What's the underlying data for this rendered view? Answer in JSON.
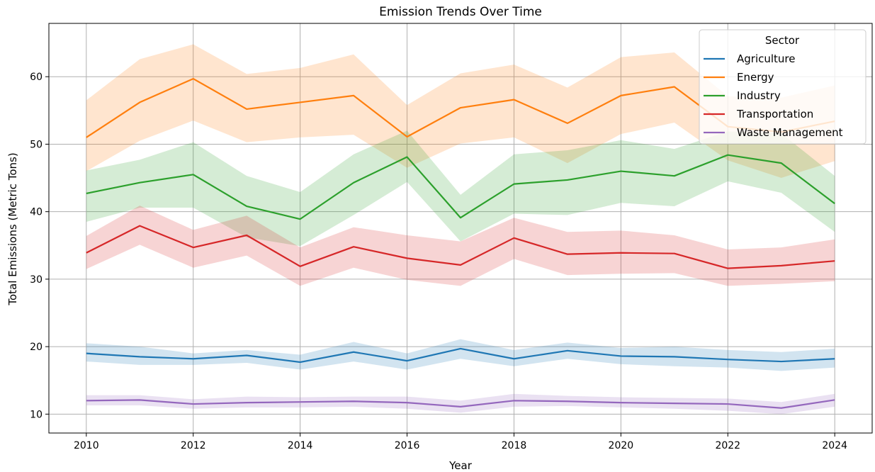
{
  "chart_data": {
    "type": "line",
    "title": "Emission Trends Over Time",
    "xlabel": "Year",
    "ylabel": "Total Emissions (Metric Tons)",
    "x": [
      2010,
      2011,
      2012,
      2013,
      2014,
      2015,
      2016,
      2017,
      2018,
      2019,
      2020,
      2021,
      2022,
      2023,
      2024
    ],
    "xlim": [
      2009.3,
      2024.7
    ],
    "ylim": [
      7.2,
      67.9
    ],
    "xticks": [
      "2010",
      "2012",
      "2014",
      "2016",
      "2018",
      "2020",
      "2022",
      "2024"
    ],
    "yticks": [
      "10",
      "20",
      "30",
      "40",
      "50",
      "60"
    ],
    "grid": true,
    "legend": {
      "title": "Sector",
      "placement": "top-right"
    },
    "series": [
      {
        "name": "Agriculture",
        "color": "#1f77b4",
        "values": [
          19.0,
          18.5,
          18.2,
          18.7,
          17.7,
          19.2,
          17.9,
          19.7,
          18.2,
          19.4,
          18.6,
          18.5,
          18.1,
          17.8,
          18.2
        ],
        "lower": [
          17.8,
          17.3,
          17.3,
          17.6,
          16.6,
          17.8,
          16.6,
          18.2,
          17.1,
          18.2,
          17.4,
          17.1,
          16.9,
          16.4,
          16.9
        ],
        "upper": [
          20.5,
          20.0,
          19.0,
          19.5,
          18.8,
          20.7,
          19.0,
          21.1,
          19.5,
          20.6,
          19.8,
          20.0,
          19.5,
          19.2,
          19.7
        ]
      },
      {
        "name": "Energy",
        "color": "#ff7f0e",
        "values": [
          51.0,
          56.2,
          59.7,
          55.2,
          56.2,
          57.2,
          51.1,
          55.4,
          56.6,
          53.1,
          57.2,
          58.5,
          52.6,
          51.8,
          53.4
        ],
        "lower": [
          46.0,
          50.5,
          53.5,
          50.3,
          51.0,
          51.4,
          46.5,
          50.1,
          51.0,
          47.2,
          51.5,
          53.2,
          47.6,
          45.0,
          47.5
        ],
        "upper": [
          56.5,
          62.6,
          64.8,
          60.4,
          61.3,
          63.3,
          55.8,
          60.5,
          61.8,
          58.4,
          62.9,
          63.6,
          57.1,
          56.9,
          58.7
        ]
      },
      {
        "name": "Industry",
        "color": "#2ca02c",
        "values": [
          42.7,
          44.3,
          45.5,
          40.8,
          38.9,
          44.3,
          48.1,
          39.1,
          44.1,
          44.7,
          46.0,
          45.3,
          48.4,
          47.2,
          41.2
        ],
        "lower": [
          38.5,
          40.6,
          40.6,
          36.2,
          34.9,
          39.5,
          44.4,
          35.6,
          39.7,
          39.5,
          41.3,
          40.8,
          44.5,
          42.8,
          37.0
        ],
        "upper": [
          46.1,
          47.7,
          50.3,
          45.3,
          42.9,
          48.5,
          52.0,
          42.5,
          48.5,
          49.1,
          50.6,
          49.3,
          51.9,
          51.6,
          45.3
        ]
      },
      {
        "name": "Transportation",
        "color": "#d62728",
        "values": [
          33.9,
          37.9,
          34.7,
          36.5,
          31.9,
          34.8,
          33.1,
          32.1,
          36.1,
          33.7,
          33.9,
          33.8,
          31.6,
          32.0,
          32.7
        ],
        "lower": [
          31.5,
          35.1,
          31.7,
          33.5,
          29.0,
          31.7,
          29.9,
          29.0,
          33.0,
          30.6,
          30.8,
          30.9,
          29.0,
          29.3,
          29.7
        ],
        "upper": [
          36.4,
          40.9,
          37.3,
          39.4,
          34.7,
          37.7,
          36.5,
          35.6,
          39.1,
          37.0,
          37.2,
          36.5,
          34.4,
          34.7,
          35.9
        ]
      },
      {
        "name": "Waste Management",
        "color": "#9467bd",
        "values": [
          12.0,
          12.1,
          11.5,
          11.7,
          11.8,
          11.9,
          11.7,
          11.1,
          12.0,
          11.9,
          11.7,
          11.6,
          11.5,
          10.9,
          12.1
        ],
        "lower": [
          11.3,
          11.3,
          10.8,
          11.0,
          11.0,
          11.1,
          10.8,
          10.2,
          11.1,
          11.2,
          11.0,
          10.8,
          10.5,
          10.0,
          11.1
        ],
        "upper": [
          12.8,
          12.8,
          12.2,
          12.6,
          12.5,
          12.6,
          12.6,
          12.0,
          13.0,
          12.7,
          12.5,
          12.4,
          12.3,
          11.8,
          13.0
        ]
      }
    ]
  }
}
